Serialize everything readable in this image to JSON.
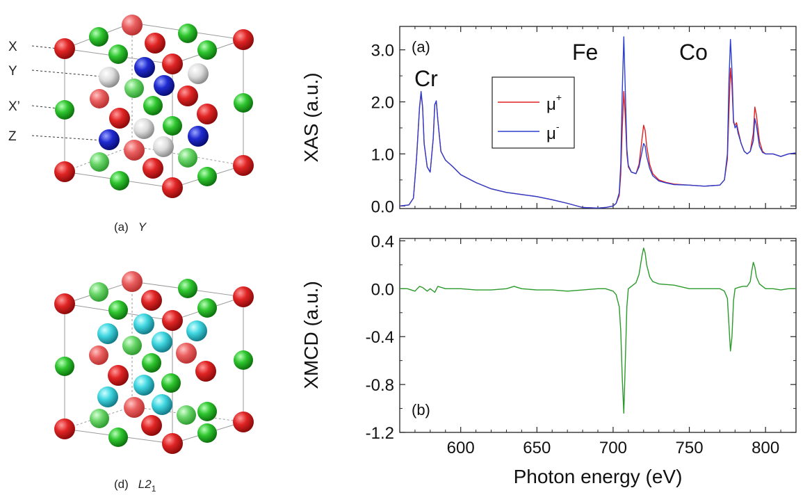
{
  "structures": [
    {
      "id": "Y",
      "caption_prefix": "(a)",
      "caption_name": "Y",
      "site_labels": [
        "X",
        "Y",
        "X’",
        "Z"
      ]
    },
    {
      "id": "L21",
      "caption_prefix": "(d)",
      "caption_name": "L2",
      "caption_sub": "1"
    }
  ],
  "colors": {
    "red_atom": "#d32020",
    "green_atom": "#2fbf2f",
    "blue_atom": "#1f2ad0",
    "white_atom": "#d8d8d8",
    "cyan_atom": "#3fd6e0",
    "mu_plus": "#e02020",
    "mu_minus": "#2a3fd0",
    "xmcd": "#2a9a2a"
  },
  "chart_data": [
    {
      "type": "line",
      "panel_label": "(a)",
      "ylabel": "XAS (a.u.)",
      "xlabel": "",
      "xlim": [
        560,
        820
      ],
      "ylim": [
        -0.05,
        3.45
      ],
      "x_ticks": [
        600,
        650,
        700,
        750,
        800
      ],
      "y_ticks": [
        "0.0",
        "1.0",
        "2.0",
        "3.0"
      ],
      "y_tick_values": [
        0,
        1,
        2,
        3
      ],
      "element_labels": [
        "Cr",
        "Fe",
        "Co"
      ],
      "legend_position": "top-center",
      "series": [
        {
          "name": "μ+",
          "label_base": "μ",
          "label_sup": "+",
          "x": [
            560,
            566,
            569,
            571,
            573,
            574,
            575,
            576,
            578,
            580,
            582,
            583,
            584,
            585,
            587,
            590,
            595,
            600,
            610,
            620,
            630,
            640,
            650,
            660,
            670,
            680,
            690,
            695,
            700,
            702,
            704,
            705,
            706,
            707,
            708,
            709,
            710,
            712,
            715,
            717,
            719,
            720,
            721,
            722,
            724,
            726,
            730,
            735,
            740,
            750,
            760,
            770,
            773,
            775,
            776,
            777,
            778,
            779,
            780,
            781,
            782,
            784,
            786,
            788,
            790,
            792,
            793,
            794,
            796,
            798,
            800,
            805,
            810,
            815,
            820
          ],
          "values": [
            0.0,
            0.02,
            0.15,
            0.9,
            1.9,
            2.15,
            1.9,
            1.2,
            0.75,
            0.65,
            1.3,
            1.95,
            2.0,
            1.65,
            1.05,
            0.88,
            0.75,
            0.6,
            0.45,
            0.33,
            0.26,
            0.22,
            0.18,
            0.12,
            0.05,
            -0.03,
            -0.04,
            -0.03,
            0.0,
            0.05,
            0.2,
            0.6,
            1.5,
            2.2,
            1.7,
            1.0,
            0.75,
            0.65,
            0.62,
            0.8,
            1.3,
            1.55,
            1.45,
            1.15,
            0.8,
            0.62,
            0.5,
            0.45,
            0.42,
            0.4,
            0.38,
            0.4,
            0.5,
            0.9,
            1.8,
            2.65,
            2.3,
            1.6,
            1.55,
            1.6,
            1.45,
            1.2,
            1.05,
            1.0,
            1.05,
            1.4,
            1.9,
            1.75,
            1.25,
            1.05,
            1.0,
            1.0,
            0.95,
            1.0,
            1.02
          ]
        },
        {
          "name": "μ-",
          "label_base": "μ",
          "label_sup": "-",
          "x": [
            560,
            566,
            569,
            571,
            573,
            574,
            575,
            576,
            578,
            580,
            582,
            583,
            584,
            585,
            587,
            590,
            595,
            600,
            610,
            620,
            630,
            640,
            650,
            660,
            670,
            680,
            690,
            695,
            700,
            702,
            704,
            705,
            706,
            707,
            708,
            709,
            710,
            712,
            715,
            717,
            719,
            720,
            721,
            722,
            724,
            726,
            730,
            735,
            740,
            750,
            760,
            770,
            773,
            775,
            776,
            777,
            778,
            779,
            780,
            781,
            782,
            784,
            786,
            788,
            790,
            792,
            793,
            794,
            796,
            798,
            800,
            805,
            810,
            815,
            820
          ],
          "values": [
            0.0,
            0.02,
            0.15,
            0.9,
            1.9,
            2.2,
            1.9,
            1.2,
            0.75,
            0.65,
            1.3,
            1.95,
            2.02,
            1.65,
            1.05,
            0.88,
            0.75,
            0.6,
            0.45,
            0.33,
            0.26,
            0.22,
            0.18,
            0.12,
            0.05,
            -0.03,
            -0.04,
            -0.03,
            0.0,
            0.05,
            0.25,
            0.8,
            2.2,
            3.25,
            2.2,
            1.1,
            0.78,
            0.65,
            0.62,
            0.75,
            1.05,
            1.2,
            1.15,
            0.95,
            0.72,
            0.58,
            0.48,
            0.44,
            0.41,
            0.4,
            0.38,
            0.4,
            0.5,
            1.0,
            2.4,
            3.2,
            2.6,
            1.65,
            1.5,
            1.55,
            1.4,
            1.2,
            1.05,
            1.0,
            1.05,
            1.25,
            1.68,
            1.55,
            1.15,
            1.03,
            1.0,
            1.0,
            0.95,
            1.0,
            1.02
          ]
        }
      ]
    },
    {
      "type": "line",
      "panel_label": "(b)",
      "ylabel": "XMCD (a.u.)",
      "xlabel": "Photon energy (eV)",
      "xlim": [
        560,
        820
      ],
      "ylim": [
        -1.2,
        0.42
      ],
      "x_ticks": [
        600,
        650,
        700,
        750,
        800
      ],
      "y_ticks": [
        "0.4",
        "0.0",
        "-0.4",
        "-0.8",
        "-1.2"
      ],
      "y_tick_values": [
        0.4,
        0.0,
        -0.4,
        -0.8,
        -1.2
      ],
      "series": [
        {
          "name": "",
          "x": [
            560,
            565,
            570,
            573,
            575,
            578,
            580,
            583,
            585,
            590,
            600,
            610,
            620,
            630,
            635,
            640,
            650,
            660,
            670,
            680,
            690,
            695,
            700,
            702,
            704,
            705,
            706,
            707,
            708,
            709,
            710,
            712,
            715,
            717,
            719,
            720,
            721,
            722,
            724,
            726,
            730,
            740,
            750,
            760,
            770,
            773,
            775,
            776,
            777,
            778,
            779,
            780,
            782,
            785,
            788,
            790,
            791,
            792,
            793,
            794,
            796,
            800,
            805,
            810,
            815,
            820
          ],
          "values": [
            0.0,
            0.0,
            -0.02,
            0.02,
            0.01,
            -0.02,
            0.0,
            -0.03,
            0.02,
            0.0,
            0.0,
            -0.01,
            -0.01,
            0.0,
            0.02,
            0.0,
            -0.01,
            -0.01,
            -0.02,
            -0.01,
            0.0,
            0.0,
            -0.02,
            -0.05,
            -0.15,
            -0.35,
            -0.75,
            -1.04,
            -0.6,
            -0.15,
            0.0,
            0.02,
            0.05,
            0.12,
            0.28,
            0.34,
            0.3,
            0.2,
            0.1,
            0.06,
            0.04,
            0.03,
            0.0,
            0.0,
            0.0,
            -0.02,
            -0.08,
            -0.3,
            -0.52,
            -0.4,
            -0.1,
            0.0,
            0.01,
            0.02,
            0.02,
            0.06,
            0.15,
            0.22,
            0.18,
            0.1,
            0.04,
            0.0,
            0.0,
            -0.01,
            0.0,
            0.0
          ]
        }
      ]
    }
  ]
}
